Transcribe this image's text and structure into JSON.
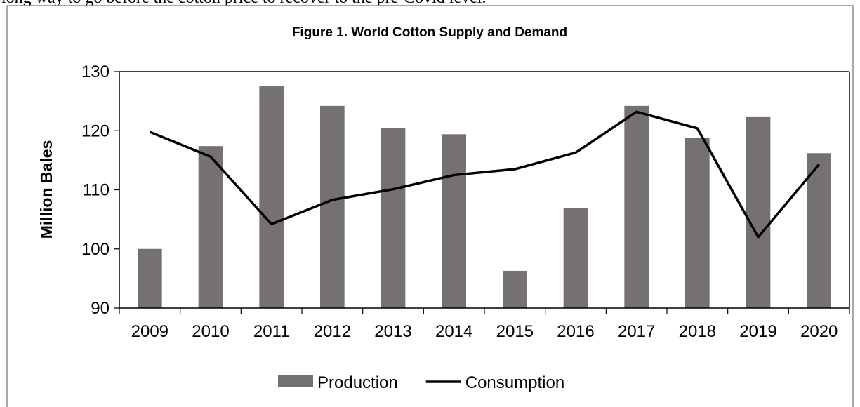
{
  "text_above": "long way to go before the cotton price to recover to the pre-Covid level.",
  "chart_data": {
    "type": "bar",
    "title": "Figure 1. World Cotton Supply and Demand",
    "y_label": "Million Bales",
    "categories": [
      "2009",
      "2010",
      "2011",
      "2012",
      "2013",
      "2014",
      "2015",
      "2016",
      "2017",
      "2018",
      "2019",
      "2020"
    ],
    "series": [
      {
        "name": "Production",
        "type": "bar",
        "color": "#767171",
        "values": [
          100,
          117.4,
          127.5,
          124.2,
          120.5,
          119.4,
          96.3,
          106.9,
          124.2,
          118.8,
          122.3,
          116.2
        ]
      },
      {
        "name": "Consumption",
        "type": "line",
        "color": "#000000",
        "values": [
          119.8,
          115.6,
          104.2,
          108.3,
          110.1,
          112.5,
          113.5,
          116.3,
          123.2,
          120.4,
          102.0,
          114.3
        ]
      }
    ],
    "ylim": [
      90,
      130
    ],
    "yticks": [
      90,
      100,
      110,
      120,
      130
    ],
    "grid": false,
    "legend": "bottom"
  }
}
